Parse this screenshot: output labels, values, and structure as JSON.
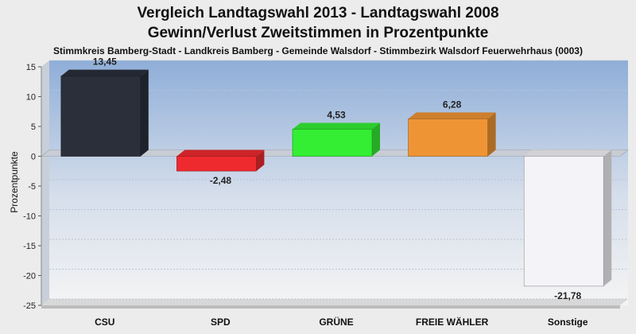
{
  "chart_data": {
    "type": "bar",
    "title": "Vergleich Landtagswahl 2013 - Landtagswahl 2008",
    "subtitle": "Gewinn/Verlust Zweitstimmen in Prozentpunkte",
    "caption": "Stimmkreis Bamberg-Stadt - Landkreis Bamberg - Gemeinde Walsdorf - Stimmbezirk Walsdorf Feuerwehrhaus (0003)",
    "ylabel": "Prozentpunkte",
    "xlabel": "",
    "ylim": [
      -25,
      15
    ],
    "yticks": [
      15,
      10,
      5,
      0,
      -5,
      -10,
      -15,
      -20,
      -25
    ],
    "categories": [
      "CSU",
      "SPD",
      "GRÜNE",
      "FREIE WÄHLER",
      "Sonstige"
    ],
    "values": [
      13.45,
      -2.48,
      4.53,
      6.28,
      -21.78
    ],
    "value_labels": [
      "13,45",
      "-2,48",
      "4,53",
      "6,28",
      "-21,78"
    ],
    "colors": [
      "#2a2f3a",
      "#ee2a2f",
      "#33ee33",
      "#ef9434",
      "#f4f4f8"
    ],
    "grid": true
  }
}
